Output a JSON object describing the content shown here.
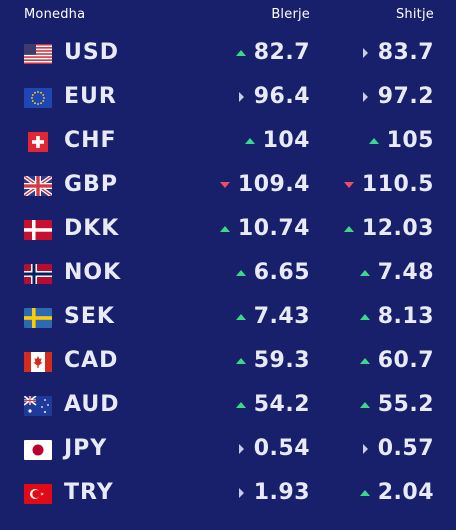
{
  "header": {
    "currency": "Monedha",
    "buy": "Blerje",
    "sell": "Shitje"
  },
  "colors": {
    "background": "#18206b",
    "up": "#3ad98a",
    "down": "#ef4b6a",
    "flat": "#c9cce6"
  },
  "rows": [
    {
      "code": "USD",
      "flag_icon": "us-flag-icon",
      "buy": "82.7",
      "buy_trend": "up",
      "sell": "83.7",
      "sell_trend": "flat"
    },
    {
      "code": "EUR",
      "flag_icon": "eu-flag-icon",
      "buy": "96.4",
      "buy_trend": "flat",
      "sell": "97.2",
      "sell_trend": "flat"
    },
    {
      "code": "CHF",
      "flag_icon": "ch-flag-icon",
      "buy": "104",
      "buy_trend": "up",
      "sell": "105",
      "sell_trend": "up"
    },
    {
      "code": "GBP",
      "flag_icon": "gb-flag-icon",
      "buy": "109.4",
      "buy_trend": "down",
      "sell": "110.5",
      "sell_trend": "down"
    },
    {
      "code": "DKK",
      "flag_icon": "dk-flag-icon",
      "buy": "10.74",
      "buy_trend": "up",
      "sell": "12.03",
      "sell_trend": "up"
    },
    {
      "code": "NOK",
      "flag_icon": "no-flag-icon",
      "buy": "6.65",
      "buy_trend": "up",
      "sell": "7.48",
      "sell_trend": "up"
    },
    {
      "code": "SEK",
      "flag_icon": "se-flag-icon",
      "buy": "7.43",
      "buy_trend": "up",
      "sell": "8.13",
      "sell_trend": "up"
    },
    {
      "code": "CAD",
      "flag_icon": "ca-flag-icon",
      "buy": "59.3",
      "buy_trend": "up",
      "sell": "60.7",
      "sell_trend": "up"
    },
    {
      "code": "AUD",
      "flag_icon": "au-flag-icon",
      "buy": "54.2",
      "buy_trend": "up",
      "sell": "55.2",
      "sell_trend": "up"
    },
    {
      "code": "JPY",
      "flag_icon": "jp-flag-icon",
      "buy": "0.54",
      "buy_trend": "flat",
      "sell": "0.57",
      "sell_trend": "flat"
    },
    {
      "code": "TRY",
      "flag_icon": "tr-flag-icon",
      "buy": "1.93",
      "buy_trend": "flat",
      "sell": "2.04",
      "sell_trend": "up"
    }
  ]
}
